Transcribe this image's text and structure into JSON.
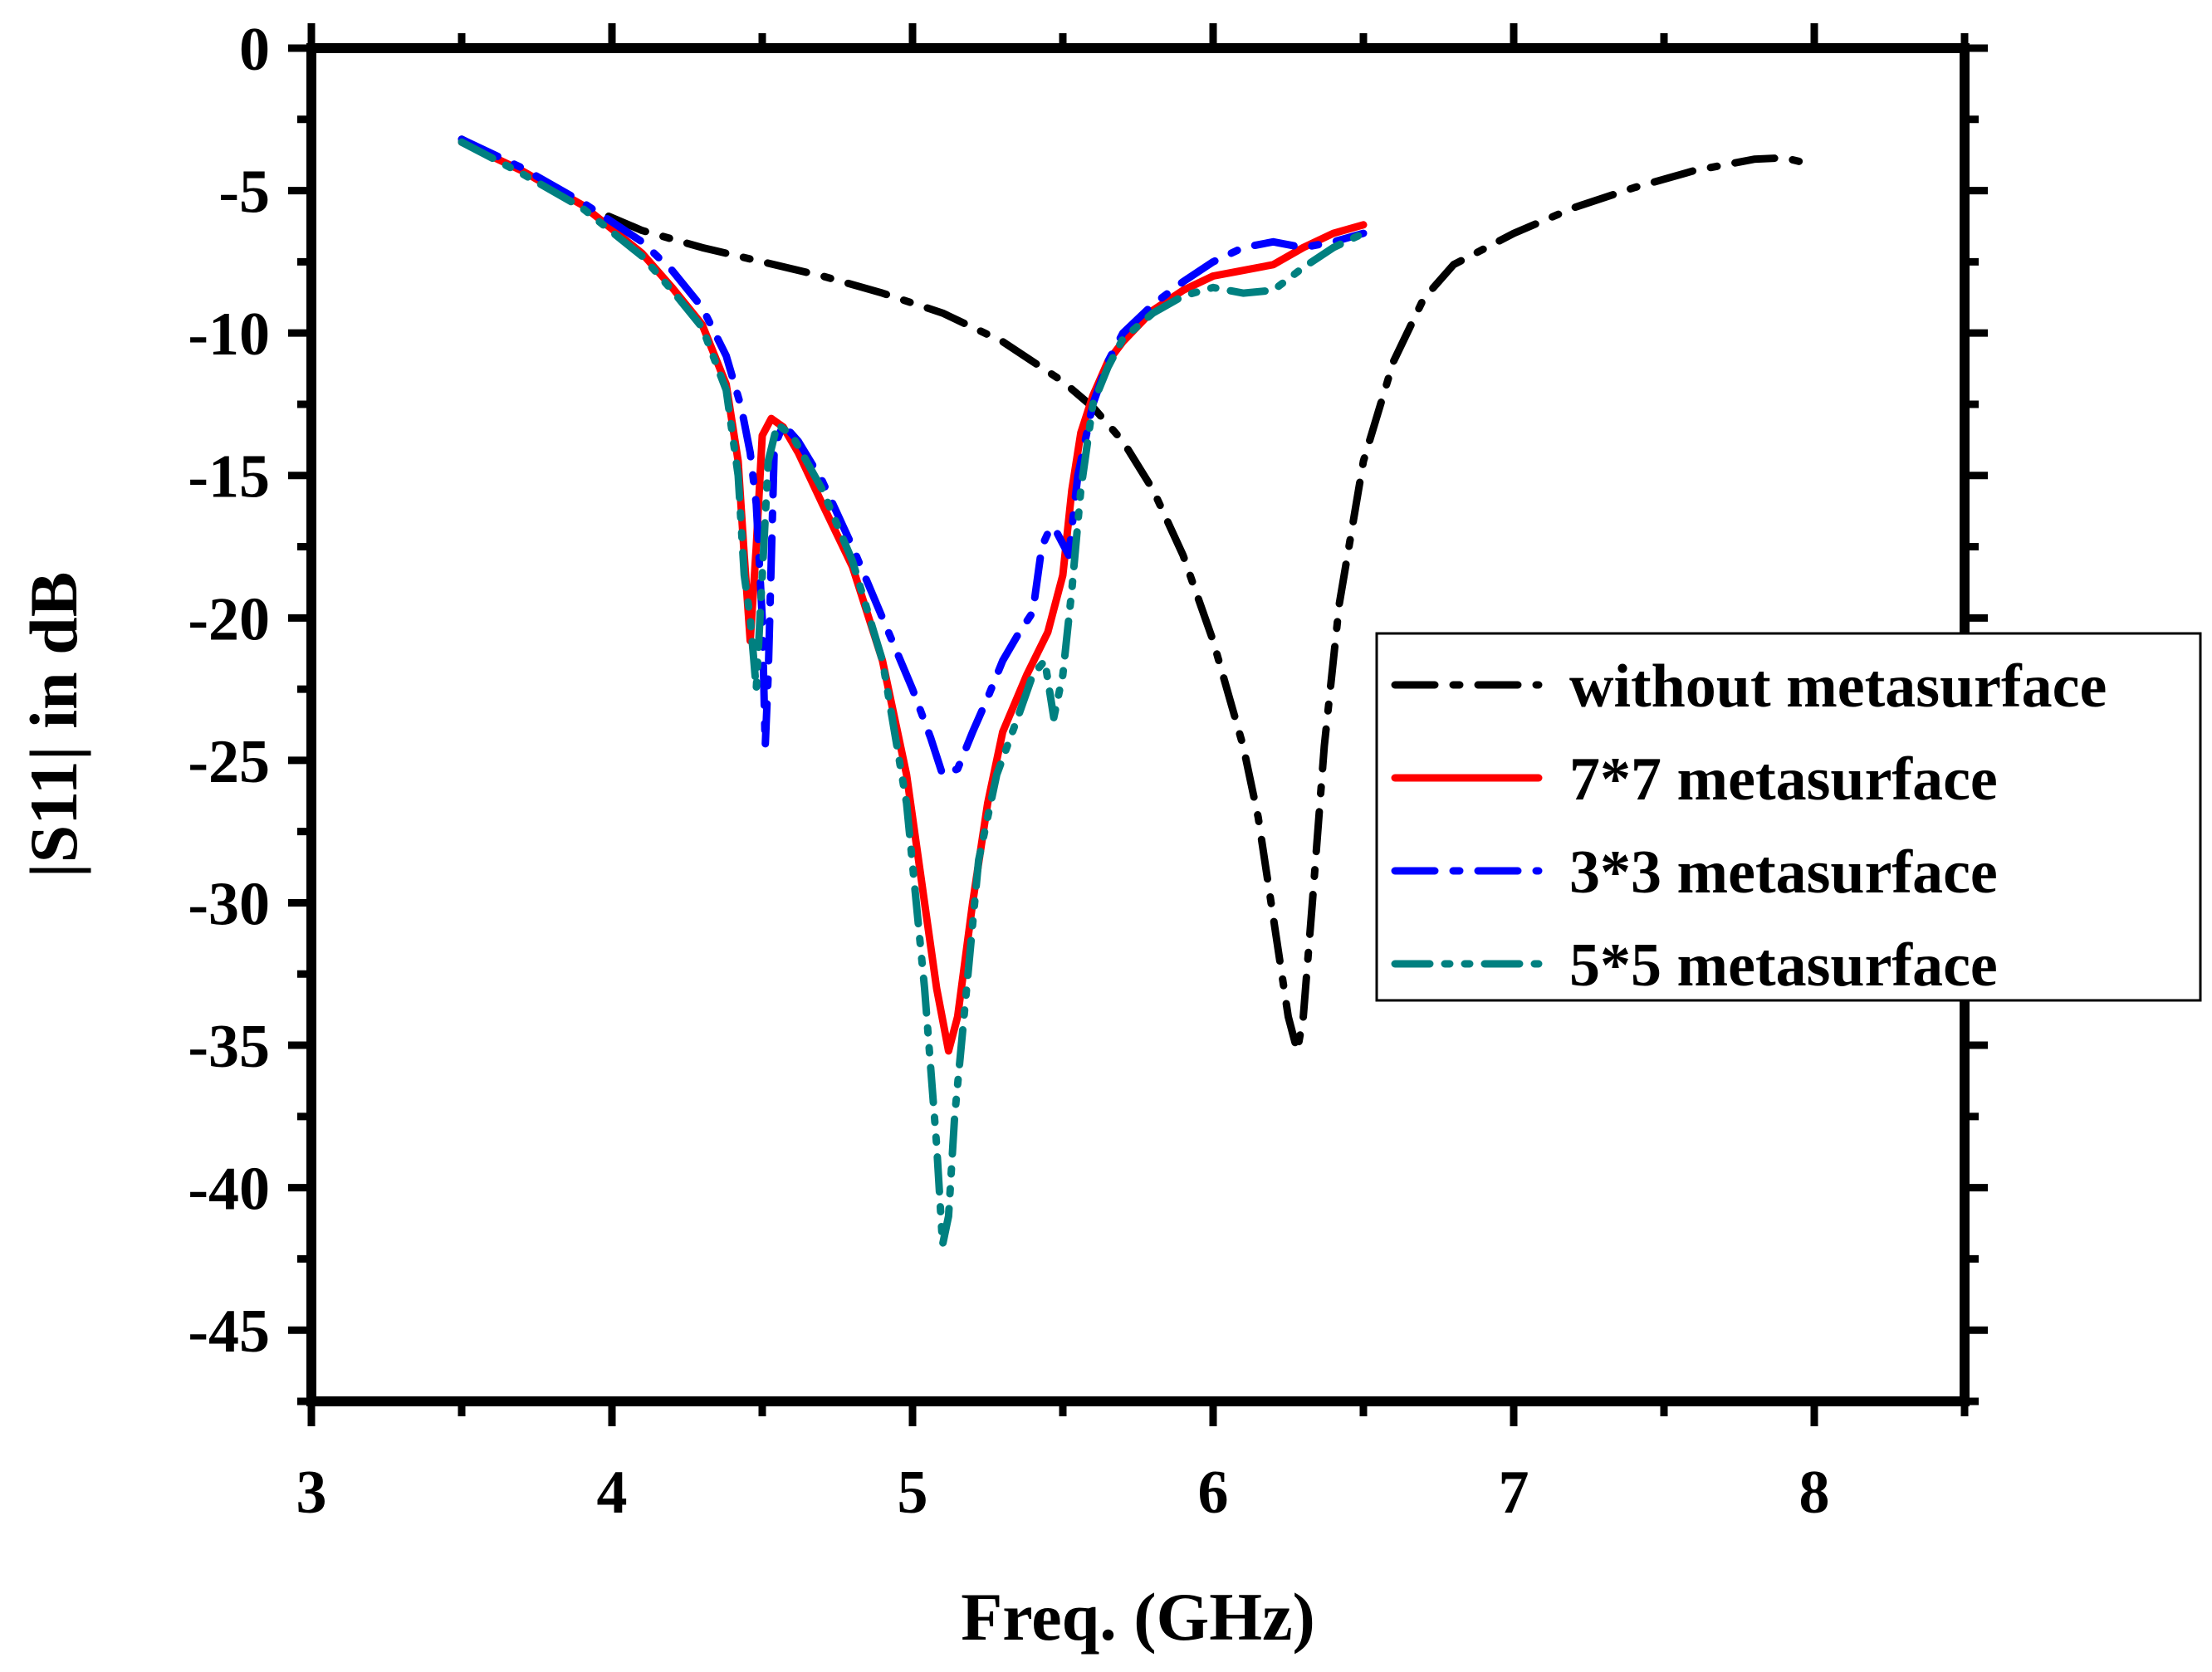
{
  "chart_data": {
    "type": "line",
    "title": "",
    "xlabel": "Freq. (GHz)",
    "ylabel": "|S11| in dB",
    "xlim": [
      3,
      8.5
    ],
    "ylim": [
      -47.5,
      0
    ],
    "x_ticks": [
      3,
      4,
      5,
      6,
      7,
      8
    ],
    "y_ticks": [
      0,
      -5,
      -10,
      -15,
      -20,
      -25,
      -30,
      -35,
      -40,
      -45
    ],
    "x_tick_labels": [
      "3",
      "4",
      "5",
      "6",
      "7",
      "8"
    ],
    "y_tick_labels": [
      "0",
      "-5",
      "-10",
      "-15",
      "-20",
      "-25",
      "-30",
      "-35",
      "-40",
      "-45"
    ],
    "grid": false,
    "legend_position": "right",
    "series": [
      {
        "name": "without metasurface",
        "color": "#000000",
        "style": "dash-dot",
        "x": [
          3.5,
          3.7,
          3.9,
          4.1,
          4.3,
          4.5,
          4.7,
          4.9,
          5.1,
          5.3,
          5.5,
          5.6,
          5.7,
          5.8,
          5.9,
          6.0,
          6.1,
          6.15,
          6.2,
          6.25,
          6.28,
          6.3,
          6.33,
          6.37,
          6.42,
          6.5,
          6.6,
          6.7,
          6.8,
          7.0,
          7.2,
          7.4,
          7.6,
          7.8,
          7.9,
          8.0
        ],
        "y": [
          -3.2,
          -4.3,
          -5.5,
          -6.4,
          -7.0,
          -7.5,
          -8.0,
          -8.6,
          -9.3,
          -10.3,
          -11.7,
          -12.6,
          -13.8,
          -15.5,
          -17.8,
          -20.8,
          -24.5,
          -27.0,
          -30.5,
          -34.0,
          -35.2,
          -34.0,
          -30.0,
          -24.5,
          -19.5,
          -14.5,
          -11.0,
          -8.8,
          -7.6,
          -6.5,
          -5.6,
          -4.9,
          -4.3,
          -3.9,
          -3.85,
          -4.1
        ]
      },
      {
        "name": "7*7 metasurface",
        "color": "#ff0000",
        "style": "solid",
        "x": [
          3.5,
          3.7,
          3.9,
          4.1,
          4.2,
          4.3,
          4.38,
          4.42,
          4.44,
          4.46,
          4.48,
          4.5,
          4.53,
          4.57,
          4.62,
          4.7,
          4.8,
          4.9,
          4.98,
          5.04,
          5.08,
          5.12,
          5.15,
          5.2,
          5.25,
          5.3,
          5.38,
          5.45,
          5.5,
          5.53,
          5.56,
          5.6,
          5.65,
          5.7,
          5.8,
          5.9,
          6.0,
          6.1,
          6.2,
          6.3,
          6.4,
          6.5
        ],
        "y": [
          -3.3,
          -4.3,
          -5.5,
          -7.2,
          -8.4,
          -9.7,
          -11.8,
          -14.5,
          -17.8,
          -20.8,
          -17.5,
          -13.6,
          -13.0,
          -13.3,
          -14.2,
          -16.0,
          -18.2,
          -21.5,
          -25.5,
          -30.0,
          -33.0,
          -35.2,
          -34.0,
          -30.0,
          -26.5,
          -24.0,
          -22.0,
          -20.5,
          -18.5,
          -15.5,
          -13.5,
          -12.2,
          -11.0,
          -10.3,
          -9.2,
          -8.5,
          -8.0,
          -7.8,
          -7.6,
          -7.0,
          -6.5,
          -6.2
        ]
      },
      {
        "name": "3*3 metasurface",
        "color": "#0000ff",
        "style": "dash-dot",
        "x": [
          3.5,
          3.7,
          3.9,
          4.1,
          4.2,
          4.3,
          4.38,
          4.43,
          4.46,
          4.48,
          4.5,
          4.51,
          4.52,
          4.54,
          4.57,
          4.62,
          4.7,
          4.8,
          4.9,
          5.0,
          5.06,
          5.1,
          5.15,
          5.2,
          5.25,
          5.3,
          5.35,
          5.4,
          5.43,
          5.46,
          5.48,
          5.52,
          5.55,
          5.6,
          5.65,
          5.7,
          5.8,
          5.9,
          6.0,
          6.1,
          6.2,
          6.3,
          6.4,
          6.5
        ],
        "y": [
          -3.2,
          -4.2,
          -5.4,
          -6.8,
          -7.8,
          -9.1,
          -10.8,
          -12.6,
          -14.2,
          -16.0,
          -20.0,
          -24.5,
          -22.0,
          -14.0,
          -13.2,
          -13.8,
          -15.2,
          -17.5,
          -20.0,
          -22.5,
          -24.2,
          -25.5,
          -25.3,
          -24.0,
          -22.8,
          -21.5,
          -20.6,
          -19.8,
          -17.5,
          -16.8,
          -17.0,
          -17.8,
          -15.0,
          -12.5,
          -11.0,
          -10.0,
          -9.0,
          -8.2,
          -7.5,
          -7.0,
          -6.8,
          -7.0,
          -6.8,
          -6.5
        ]
      },
      {
        "name": "5*5 metasurface",
        "color": "#008080",
        "style": "dash-dot-dot",
        "x": [
          3.5,
          3.7,
          3.9,
          4.1,
          4.2,
          4.3,
          4.38,
          4.42,
          4.44,
          4.46,
          4.48,
          4.5,
          4.52,
          4.55,
          4.6,
          4.7,
          4.8,
          4.9,
          4.98,
          5.04,
          5.08,
          5.1,
          5.12,
          5.14,
          5.18,
          5.22,
          5.28,
          5.35,
          5.4,
          5.44,
          5.47,
          5.5,
          5.53,
          5.56,
          5.6,
          5.65,
          5.7,
          5.8,
          5.9,
          6.0,
          6.1,
          6.2,
          6.3,
          6.4,
          6.5
        ],
        "y": [
          -3.3,
          -4.4,
          -5.6,
          -7.3,
          -8.5,
          -9.8,
          -12.0,
          -15.0,
          -18.5,
          -20.0,
          -22.5,
          -18.5,
          -14.5,
          -13.2,
          -13.6,
          -15.5,
          -18.0,
          -21.5,
          -26.5,
          -33.0,
          -38.5,
          -42.0,
          -41.0,
          -37.5,
          -33.0,
          -28.5,
          -25.5,
          -23.5,
          -22.0,
          -21.5,
          -23.5,
          -22.0,
          -19.0,
          -15.5,
          -12.5,
          -11.2,
          -10.2,
          -9.3,
          -8.7,
          -8.4,
          -8.6,
          -8.5,
          -7.7,
          -7.0,
          -6.5
        ]
      }
    ]
  }
}
